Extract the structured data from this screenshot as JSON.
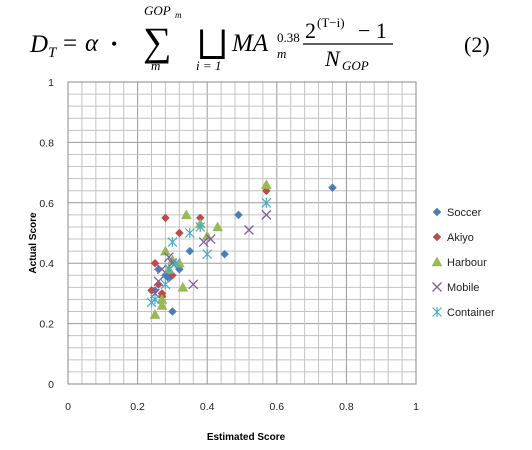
{
  "equation": {
    "lhs_var": "D",
    "lhs_sub": "T",
    "equals": "=",
    "alpha": "α",
    "dot": "•",
    "sum": "∑",
    "sum_upper": "GOP",
    "sum_upper_sub": "m",
    "sum_lower": "m",
    "union": "⨆",
    "union_lower": "i = 1",
    "ma_term": "MA",
    "ma_exp": "0.38",
    "ma_sub": "m",
    "num_base": "2",
    "num_exp": "(T−i)",
    "num_minus": "− 1",
    "den_var": "N",
    "den_sub": "GOP",
    "number": "(2)"
  },
  "chart_data": {
    "type": "scatter",
    "title": "",
    "xlabel": "Estimated Score",
    "ylabel": "Actual Score",
    "xlim": [
      0,
      1
    ],
    "ylim": [
      0,
      1
    ],
    "x_ticks": [
      "0",
      "0.2",
      "0.4",
      "0.6",
      "0.8",
      "1"
    ],
    "y_ticks": [
      "0",
      "0.2",
      "0.4",
      "0.6",
      "0.8",
      "1"
    ],
    "grid": true,
    "legend_position": "right",
    "series": [
      {
        "name": "Soccer",
        "marker": "diamond",
        "color": "#4a7ebb",
        "points": [
          [
            0.76,
            0.65
          ],
          [
            0.49,
            0.56
          ],
          [
            0.45,
            0.43
          ],
          [
            0.35,
            0.44
          ],
          [
            0.3,
            0.24
          ],
          [
            0.28,
            0.36
          ],
          [
            0.25,
            0.31
          ],
          [
            0.26,
            0.38
          ],
          [
            0.29,
            0.35
          ],
          [
            0.32,
            0.38
          ]
        ]
      },
      {
        "name": "Akiyo",
        "marker": "diamond",
        "color": "#be4b48",
        "points": [
          [
            0.57,
            0.64
          ],
          [
            0.38,
            0.55
          ],
          [
            0.28,
            0.55
          ],
          [
            0.32,
            0.5
          ],
          [
            0.25,
            0.4
          ],
          [
            0.24,
            0.31
          ],
          [
            0.27,
            0.29
          ],
          [
            0.26,
            0.33
          ],
          [
            0.27,
            0.3
          ],
          [
            0.3,
            0.36
          ]
        ]
      },
      {
        "name": "Harbour",
        "marker": "triangle",
        "color": "#98b954",
        "points": [
          [
            0.57,
            0.66
          ],
          [
            0.34,
            0.56
          ],
          [
            0.43,
            0.52
          ],
          [
            0.38,
            0.53
          ],
          [
            0.28,
            0.44
          ],
          [
            0.32,
            0.4
          ],
          [
            0.33,
            0.32
          ],
          [
            0.25,
            0.23
          ],
          [
            0.27,
            0.26
          ],
          [
            0.29,
            0.38
          ],
          [
            0.3,
            0.41
          ],
          [
            0.27,
            0.28
          ],
          [
            0.4,
            0.49
          ]
        ]
      },
      {
        "name": "Mobile",
        "marker": "x",
        "color": "#7d60a0",
        "points": [
          [
            0.57,
            0.56
          ],
          [
            0.52,
            0.51
          ],
          [
            0.36,
            0.33
          ],
          [
            0.39,
            0.47
          ],
          [
            0.26,
            0.34
          ],
          [
            0.3,
            0.4
          ],
          [
            0.27,
            0.38
          ],
          [
            0.29,
            0.42
          ],
          [
            0.41,
            0.48
          ],
          [
            0.25,
            0.3
          ]
        ]
      },
      {
        "name": "Container",
        "marker": "asterisk",
        "color": "#4bacc6",
        "points": [
          [
            0.57,
            0.6
          ],
          [
            0.4,
            0.43
          ],
          [
            0.3,
            0.47
          ],
          [
            0.38,
            0.52
          ],
          [
            0.25,
            0.28
          ],
          [
            0.24,
            0.27
          ],
          [
            0.29,
            0.38
          ],
          [
            0.28,
            0.33
          ],
          [
            0.31,
            0.4
          ],
          [
            0.35,
            0.5
          ]
        ]
      }
    ]
  }
}
